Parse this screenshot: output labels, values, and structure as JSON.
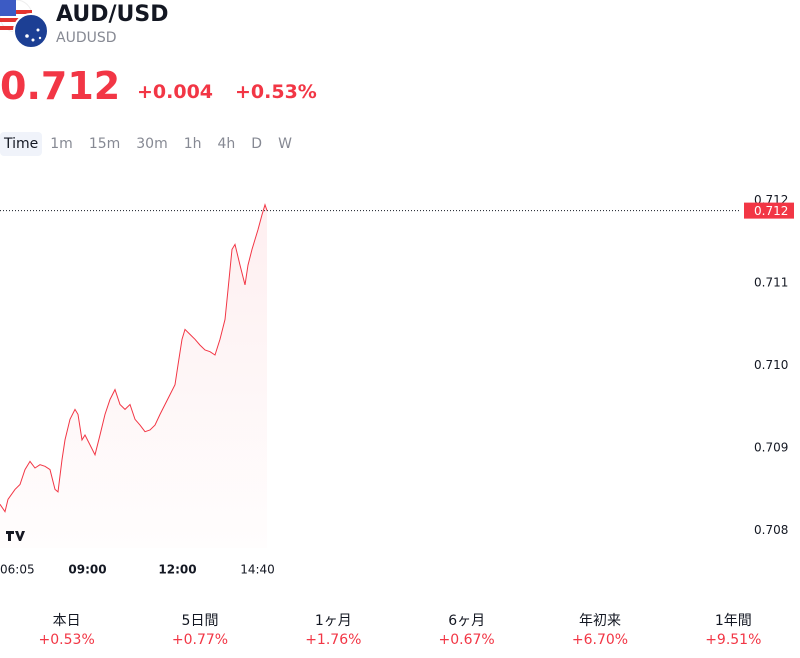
{
  "header": {
    "title": "AUD/USD",
    "symbol": "AUDUSD",
    "price": "0.712",
    "change": "+0.004",
    "change_pct": "+0.53%"
  },
  "tabs": [
    "Time",
    "1m",
    "15m",
    "30m",
    "1h",
    "4h",
    "D",
    "W"
  ],
  "chart_data": {
    "type": "line",
    "color": "#f23645",
    "x": [
      365,
      375,
      381,
      395,
      405,
      415,
      425,
      435,
      445,
      455,
      465,
      475,
      481,
      489,
      495,
      505,
      515,
      521,
      529,
      535,
      545,
      555,
      565,
      575,
      585,
      595,
      605,
      615,
      625,
      635,
      645,
      655,
      665,
      675,
      685,
      695,
      705,
      715,
      721,
      729,
      735,
      745,
      755,
      765,
      775,
      785,
      795,
      805,
      815,
      821,
      829,
      835,
      845,
      855,
      861,
      869,
      875,
      881,
      889,
      895,
      899
    ],
    "values": [
      0.70832,
      0.70823,
      0.70838,
      0.7085,
      0.70856,
      0.70874,
      0.70884,
      0.70876,
      0.7088,
      0.70878,
      0.70874,
      0.7085,
      0.70847,
      0.70886,
      0.7091,
      0.70935,
      0.70947,
      0.70941,
      0.7091,
      0.70916,
      0.70904,
      0.70892,
      0.70916,
      0.70941,
      0.70959,
      0.70971,
      0.70953,
      0.70947,
      0.70953,
      0.70935,
      0.70928,
      0.7092,
      0.70922,
      0.70928,
      0.70941,
      0.70953,
      0.70965,
      0.70977,
      0.71001,
      0.71032,
      0.71044,
      0.71038,
      0.71032,
      0.71025,
      0.71019,
      0.71017,
      0.71013,
      0.71032,
      0.71056,
      0.71092,
      0.71141,
      0.71147,
      0.71122,
      0.71098,
      0.71122,
      0.71141,
      0.71153,
      0.71165,
      0.71183,
      0.71195,
      0.71188
    ],
    "xlim": [
      365,
      1845
    ],
    "xticks": [
      {
        "value": 365,
        "label": "06:05"
      },
      {
        "value": 540,
        "label": "09:00"
      },
      {
        "value": 720,
        "label": "12:00"
      },
      {
        "value": 880,
        "label": "14:40"
      }
    ],
    "ylim": [
      0.70779,
      0.71213
    ],
    "yticks": [
      0.708,
      0.709,
      {
        "value": 0.71,
        "label": "0.710"
      },
      0.711,
      0.712
    ],
    "price_line": {
      "value": 0.71188,
      "label": "0.712"
    }
  },
  "performance": [
    {
      "label": "本日",
      "value": "+0.53%"
    },
    {
      "label": "5日間",
      "value": "+0.77%"
    },
    {
      "label": "1ヶ月",
      "value": "+1.76%"
    },
    {
      "label": "6ヶ月",
      "value": "+0.67%"
    },
    {
      "label": "年初来",
      "value": "+6.70%"
    },
    {
      "label": "1年間",
      "value": "+9.51%"
    }
  ]
}
